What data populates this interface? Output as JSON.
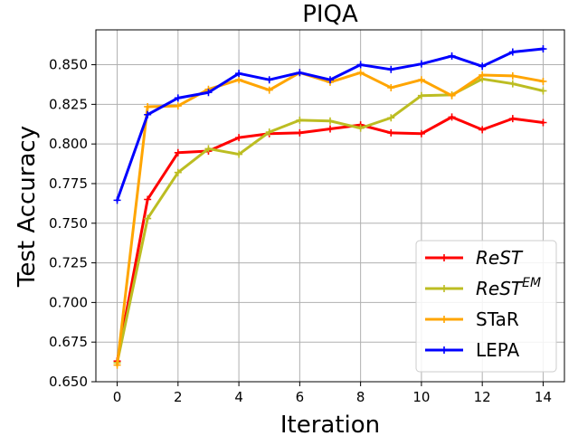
{
  "chart_data": {
    "type": "line",
    "title": "PIQA",
    "xlabel": "Iteration",
    "ylabel": "Test Accuracy",
    "xlim": [
      -0.7,
      14.7
    ],
    "ylim": [
      0.65,
      0.872
    ],
    "grid": true,
    "legend_position": "lower-right",
    "xticks": [
      0,
      2,
      4,
      6,
      8,
      10,
      12,
      14
    ],
    "xtick_labels": [
      "0",
      "2",
      "4",
      "6",
      "8",
      "10",
      "12",
      "14"
    ],
    "yticks": [
      0.65,
      0.675,
      0.7,
      0.725,
      0.75,
      0.775,
      0.8,
      0.825,
      0.85
    ],
    "ytick_labels": [
      "0.650",
      "0.675",
      "0.700",
      "0.725",
      "0.750",
      "0.775",
      "0.800",
      "0.825",
      "0.850"
    ],
    "x": [
      0,
      1,
      2,
      3,
      4,
      5,
      6,
      7,
      8,
      9,
      10,
      11,
      12,
      13,
      14
    ],
    "series": [
      {
        "name": "ReST",
        "legend_base": "ReST",
        "legend_sup": "",
        "color": "#ff0000",
        "values": [
          0.663,
          0.765,
          0.7945,
          0.7955,
          0.804,
          0.8065,
          0.807,
          0.8095,
          0.812,
          0.807,
          0.8065,
          0.817,
          0.809,
          0.816,
          0.8135
        ]
      },
      {
        "name": "ReST^EM",
        "legend_base": "ReST",
        "legend_sup": "EM",
        "color": "#bcbd22",
        "values": [
          0.662,
          0.753,
          0.782,
          0.797,
          0.7935,
          0.8075,
          0.815,
          0.8145,
          0.81,
          0.8165,
          0.8305,
          0.831,
          0.841,
          0.838,
          0.8335
        ]
      },
      {
        "name": "STaR",
        "legend_base": "STaR",
        "legend_sup": "",
        "color": "#ffa500",
        "values": [
          0.6605,
          0.8235,
          0.824,
          0.8345,
          0.8405,
          0.834,
          0.845,
          0.839,
          0.845,
          0.8355,
          0.8405,
          0.8305,
          0.8435,
          0.843,
          0.8395
        ]
      },
      {
        "name": "LEPA",
        "legend_base": "LEPA",
        "legend_sup": "",
        "color": "#0000ff",
        "values": [
          0.7645,
          0.8185,
          0.829,
          0.8325,
          0.8445,
          0.8405,
          0.845,
          0.8405,
          0.85,
          0.847,
          0.8505,
          0.8555,
          0.849,
          0.858,
          0.86
        ]
      }
    ]
  }
}
